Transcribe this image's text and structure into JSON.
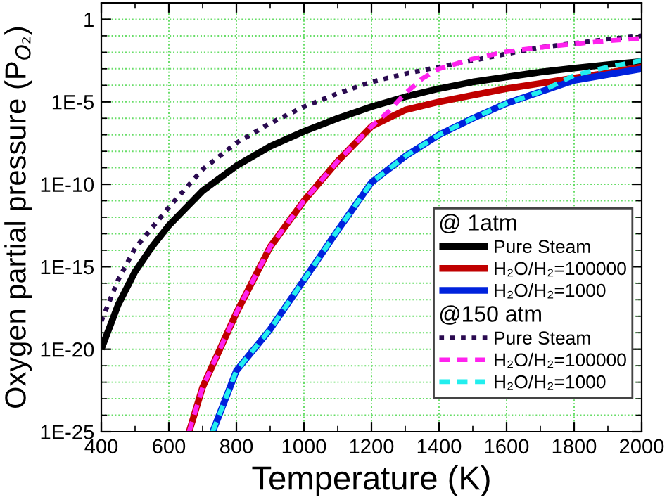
{
  "chart_data": {
    "type": "line",
    "xlabel": "Temperature (K)",
    "ylabel": "Oxygen partial pressure (P$_{O₂}$)",
    "log": "y",
    "grid": true,
    "legend": "right",
    "legend_title": "@ 1atm",
    "annotations": [
      "@150 atm"
    ],
    "xlim": [
      400,
      2000
    ],
    "xticks": [
      400,
      600,
      800,
      1000,
      1200,
      1400,
      1600,
      1800,
      2000
    ],
    "ylim": [
      1e-25,
      10
    ],
    "yticks": [
      {
        "value": 1e-25,
        "label": "1E-25"
      },
      {
        "value": 1e-20,
        "label": "1E-20"
      },
      {
        "value": 1e-15,
        "label": "1E-15"
      },
      {
        "value": 1e-10,
        "label": "1E-10"
      },
      {
        "value": 1e-05,
        "label": "1E-5"
      },
      1
    ],
    "series": [
      {
        "name": "Pure Steam",
        "color": "#000000",
        "line_style": "solid",
        "x": [
          400,
          450,
          500,
          550,
          600,
          700,
          800,
          900,
          1000,
          1100,
          1200,
          1300,
          1400,
          1500,
          1600,
          1700,
          1800,
          1900,
          2000
        ],
        "values": [
          1e-20,
          5e-18,
          5e-16,
          1.6e-14,
          3.2e-13,
          4e-11,
          1.3e-09,
          2e-08,
          1.6e-07,
          1e-06,
          5e-06,
          2e-05,
          6.3e-05,
          0.00016,
          0.00032,
          0.00063,
          0.0011,
          0.0018,
          0.0028
        ]
      },
      {
        "name": "H₂O/H₂=100000",
        "color": "#c00000",
        "line_style": "solid",
        "x": [
          660,
          700,
          800,
          900,
          1000,
          1100,
          1200,
          1300,
          1400,
          1500,
          1600,
          1700,
          1800,
          1900,
          2000
        ],
        "values": [
          1e-25,
          5e-23,
          1.6e-18,
          1.6e-14,
          1e-11,
          2.5e-09,
          3.2e-07,
          3.2e-06,
          1e-05,
          2.5e-05,
          6.3e-05,
          0.00013,
          0.00028,
          0.00056,
          0.0013
        ]
      },
      {
        "name": "H₂O/H₂=1000",
        "color": "#0022dd",
        "line_style": "solid",
        "x": [
          730,
          800,
          900,
          1000,
          1100,
          1200,
          1300,
          1400,
          1500,
          1600,
          1700,
          1800,
          1900,
          2000
        ],
        "values": [
          1e-25,
          5e-22,
          1.6e-19,
          1.6e-16,
          1.6e-13,
          1.3e-10,
          5e-09,
          1e-07,
          1e-06,
          8e-06,
          4e-05,
          0.0002,
          0.00045,
          0.001
        ]
      },
      {
        "name": "Pure Steam",
        "color": "#2a0a50",
        "line_style": "dotted",
        "x": [
          400,
          450,
          500,
          600,
          700,
          800,
          900,
          1000,
          1100,
          1200,
          1300,
          1400,
          1500,
          1600,
          1700,
          1800,
          1900,
          2000
        ],
        "values": [
          5e-19,
          1.6e-16,
          1.3e-14,
          4e-12,
          8e-10,
          3.2e-08,
          5e-07,
          5e-06,
          3.2e-05,
          0.00016,
          0.0005,
          0.0013,
          0.0032,
          0.008,
          0.02,
          0.035,
          0.063,
          0.1
        ]
      },
      {
        "name": "H₂O/H₂=100000",
        "color": "#ff22ee",
        "line_style": "dashed",
        "x": [
          660,
          700,
          800,
          900,
          1000,
          1100,
          1200,
          1250,
          1300,
          1350,
          1400,
          1500,
          1600,
          1700,
          1800,
          1900,
          2000
        ],
        "values": [
          1e-25,
          5e-23,
          1.6e-18,
          1.6e-14,
          1e-11,
          2.5e-09,
          3.2e-07,
          2.5e-06,
          3.2e-05,
          0.00025,
          0.001,
          0.004,
          0.011,
          0.02,
          0.032,
          0.05,
          0.071
        ]
      },
      {
        "name": "H₂O/H₂=1000",
        "color": "#22eeee",
        "line_style": "dashed",
        "x": [
          730,
          800,
          900,
          1000,
          1100,
          1200,
          1300,
          1400,
          1500,
          1600,
          1700,
          1800,
          1900,
          2000
        ],
        "values": [
          1e-25,
          5e-22,
          1.6e-19,
          1.6e-16,
          1.6e-13,
          1.3e-10,
          5e-09,
          1e-07,
          1e-06,
          8e-06,
          4e-05,
          0.0004,
          0.0013,
          0.0032
        ]
      }
    ]
  }
}
